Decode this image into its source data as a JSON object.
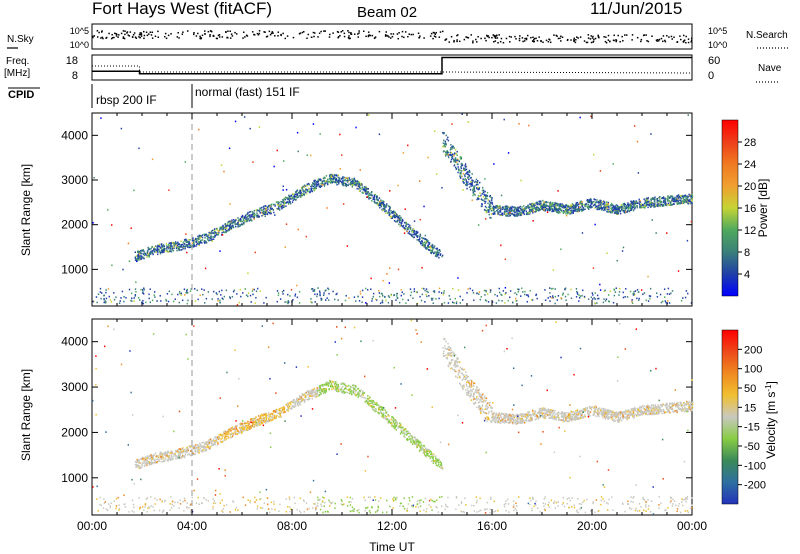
{
  "header": {
    "title": "Fort Hays West (fitACF)",
    "beam": "Beam 02",
    "date": "11/Jun/2015"
  },
  "summary": {
    "nsky_label": "N.Sky",
    "nsearch_label": "N.Search",
    "freq_label": "Freq.",
    "freq_unit": "[MHz]",
    "nave_label": "Nave",
    "cpid_label": "CPID",
    "noise_ticks": [
      "10^5",
      "10^0"
    ],
    "noise_right_ticks": [
      "10^5",
      "10^0"
    ],
    "freq_ticks": [
      "18",
      "8"
    ],
    "nave_ticks": [
      "60",
      "0"
    ],
    "freq_steps": [
      {
        "t": 0.0,
        "mhz": 11.5
      },
      {
        "t": 1.9,
        "mhz": 10.5
      },
      {
        "t": 14.0,
        "mhz": 17.0
      },
      {
        "t": 24.0,
        "mhz": 17.0
      }
    ],
    "cpid_segments": [
      {
        "start": 0.0,
        "end": 4.0,
        "label": "rbsp 200 IF"
      },
      {
        "start": 4.0,
        "end": 24.0,
        "label": "normal (fast) 151 IF"
      }
    ]
  },
  "chart_data": [
    {
      "type": "scatter",
      "name": "power",
      "ylabel": "Slant Range [km]",
      "ylim": [
        180,
        4500
      ],
      "yticks": [
        1000,
        2000,
        3000,
        4000
      ],
      "xlim": [
        0,
        24
      ],
      "colorbar": {
        "label": "Power [dB]",
        "ticks": [
          "28",
          "24",
          "20",
          "16",
          "12",
          "8",
          "4"
        ],
        "colors": [
          "#0000ff",
          "#1f3fa8",
          "#3a7f7a",
          "#4fa95e",
          "#c5d435",
          "#f0a030",
          "#f07a20",
          "#ee3f1a",
          "#ff0000"
        ]
      },
      "tracks": [
        {
          "t": [
            1.7,
            2.5,
            3.5,
            4.5,
            5.5,
            6.5,
            7.5,
            8.5,
            9.5,
            10.5,
            11.5,
            12.5,
            13.5,
            14.0
          ],
          "range": [
            1300,
            1450,
            1550,
            1700,
            2000,
            2250,
            2450,
            2800,
            3050,
            2950,
            2500,
            2000,
            1500,
            1300
          ]
        },
        {
          "t": [
            14.0,
            14.5,
            15.0,
            15.5,
            16.0,
            17.0,
            18.0,
            19.0,
            20.0,
            21.0,
            22.0,
            23.0,
            24.0
          ],
          "range": [
            3900,
            3500,
            3050,
            2700,
            2350,
            2300,
            2450,
            2350,
            2500,
            2350,
            2500,
            2550,
            2600
          ]
        }
      ]
    },
    {
      "type": "scatter",
      "name": "velocity",
      "ylabel": "Slant Range [km]",
      "ylim": [
        180,
        4500
      ],
      "yticks": [
        1000,
        2000,
        3000,
        4000
      ],
      "xlim": [
        0,
        24
      ],
      "xticks": [
        "00:00",
        "04:00",
        "08:00",
        "12:00",
        "16:00",
        "20:00",
        "00:00"
      ],
      "xlabel": "Time UT",
      "colorbar": {
        "label": "Velocity [m s^-1]",
        "ticks": [
          "200",
          "100",
          "50",
          "15",
          "-15",
          "-50",
          "-100",
          "-200"
        ],
        "colors": [
          "#2233bb",
          "#2e6fa0",
          "#3b8a5a",
          "#88cc44",
          "#c8c8c0",
          "#f0c030",
          "#f08a20",
          "#ee4a1a",
          "#ff0000"
        ]
      },
      "tracks": [
        {
          "t": [
            1.7,
            2.5,
            3.5,
            4.5,
            5.5,
            6.5,
            7.5,
            8.5,
            9.5,
            10.5,
            11.5,
            12.5,
            13.5,
            14.0
          ],
          "range": [
            1300,
            1450,
            1550,
            1700,
            2000,
            2250,
            2450,
            2800,
            3050,
            2950,
            2500,
            2000,
            1500,
            1300
          ]
        },
        {
          "t": [
            14.0,
            14.5,
            15.0,
            15.5,
            16.0,
            17.0,
            18.0,
            19.0,
            20.0,
            21.0,
            22.0,
            23.0,
            24.0
          ],
          "range": [
            3900,
            3500,
            3050,
            2700,
            2350,
            2300,
            2450,
            2350,
            2500,
            2350,
            2500,
            2550,
            2600
          ]
        }
      ]
    }
  ]
}
